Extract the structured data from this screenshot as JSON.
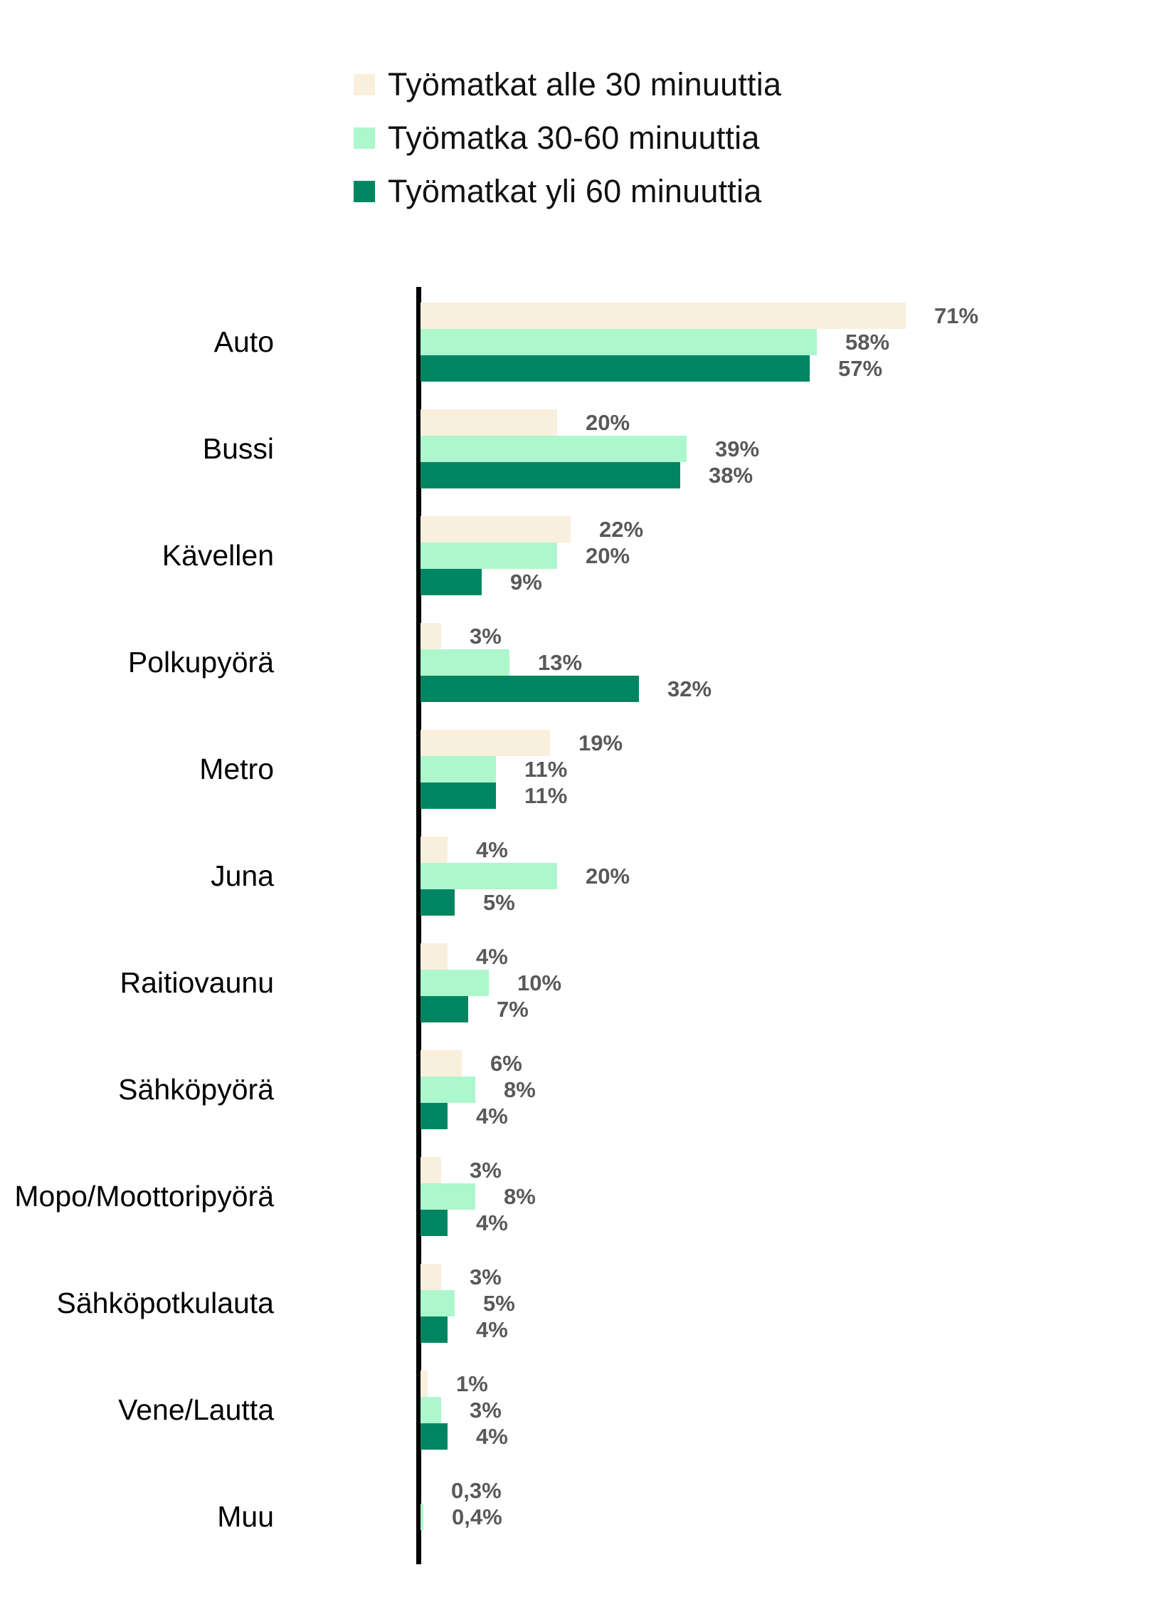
{
  "chart_data": {
    "type": "bar",
    "orientation": "horizontal",
    "grouped": true,
    "title": "",
    "legend_position": "top-left",
    "grid": false,
    "xlim": [
      0,
      75
    ],
    "value_label_color": "#595959",
    "axis_line_color": "#000000",
    "categories": [
      "Auto",
      "Bussi",
      "Kävellen",
      "Polkupyörä",
      "Metro",
      "Juna",
      "Raitiovaunu",
      "Sähköpyörä",
      "Mopo/Moottoripyörä",
      "Sähköpotkulauta",
      "Vene/Lautta",
      "Muu"
    ],
    "series": [
      {
        "name": "Työmatkat alle 30 minuuttia",
        "color": "#F9EFDD",
        "values": [
          71,
          20,
          22,
          3,
          19,
          4,
          4,
          6,
          3,
          3,
          1,
          0.3
        ],
        "labels": [
          "71%",
          "20%",
          "22%",
          "3%",
          "19%",
          "4%",
          "4%",
          "6%",
          "3%",
          "3%",
          "1%",
          "0,3%"
        ]
      },
      {
        "name": "Työmatka 30-60 minuuttia",
        "color": "#ACF7CC",
        "values": [
          58,
          39,
          20,
          13,
          11,
          20,
          10,
          8,
          8,
          5,
          3,
          0.4
        ],
        "labels": [
          "58%",
          "39%",
          "20%",
          "13%",
          "11%",
          "20%",
          "10%",
          "8%",
          "8%",
          "5%",
          "3%",
          "0,4%"
        ]
      },
      {
        "name": "Työmatkat yli 60 minuuttia",
        "color": "#008563",
        "values": [
          57,
          38,
          9,
          32,
          11,
          5,
          7,
          4,
          4,
          4,
          4,
          null
        ],
        "labels": [
          "57%",
          "38%",
          "9%",
          "32%",
          "11%",
          "5%",
          "7%",
          "4%",
          "4%",
          "4%",
          "4%",
          null
        ]
      }
    ]
  }
}
